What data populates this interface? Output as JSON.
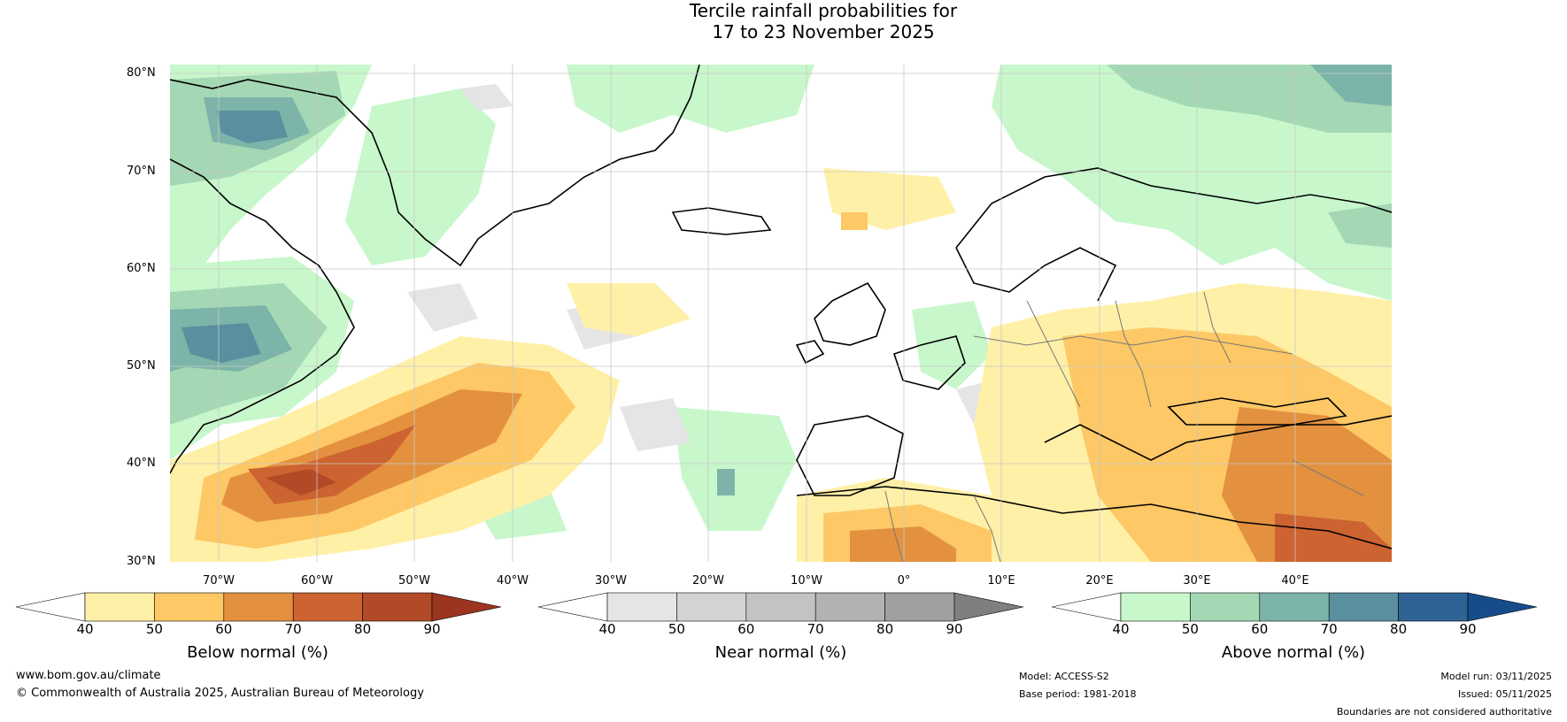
{
  "title": {
    "line1": "Tercile rainfall probabilities for",
    "line2": "17 to 23 November 2025"
  },
  "map": {
    "lat_labels": [
      "80°N",
      "70°N",
      "60°N",
      "50°N",
      "40°N",
      "30°N"
    ],
    "lon_labels": [
      "70°W",
      "60°W",
      "50°W",
      "40°W",
      "30°W",
      "20°W",
      "10°W",
      "0°",
      "10°E",
      "20°E",
      "30°E",
      "40°E"
    ]
  },
  "colorbars": [
    {
      "title": "Below normal (%)",
      "ticks": [
        "40",
        "50",
        "60",
        "70",
        "80",
        "90"
      ],
      "colors": [
        "#fff0a8",
        "#fdc865",
        "#e3913f",
        "#cd6330",
        "#b24a27"
      ],
      "extend_color": "#9b3520"
    },
    {
      "title": "Near normal (%)",
      "ticks": [
        "40",
        "50",
        "60",
        "70",
        "80",
        "90"
      ],
      "colors": [
        "#e5e5e5",
        "#d3d3d3",
        "#c3c3c3",
        "#b2b2b2",
        "#a0a0a0"
      ],
      "extend_color": "#7f7f7f"
    },
    {
      "title": "Above normal (%)",
      "ticks": [
        "40",
        "50",
        "60",
        "70",
        "80",
        "90"
      ],
      "colors": [
        "#c7f7cb",
        "#a4d8b4",
        "#7db4a9",
        "#5a8f9f",
        "#2f6395"
      ],
      "extend_color": "#174c8a"
    }
  ],
  "footer": {
    "website": "www.bom.gov.au/climate",
    "copyright": "© Commonwealth of Australia 2025, Australian Bureau of Meteorology",
    "model": "Model: ACCESS-S2",
    "base_period": "Base period: 1981-2018",
    "model_run": "Model run: 03/11/2025",
    "issued": "Issued: 05/11/2025",
    "boundaries": "Boundaries are not considered authoritative"
  }
}
